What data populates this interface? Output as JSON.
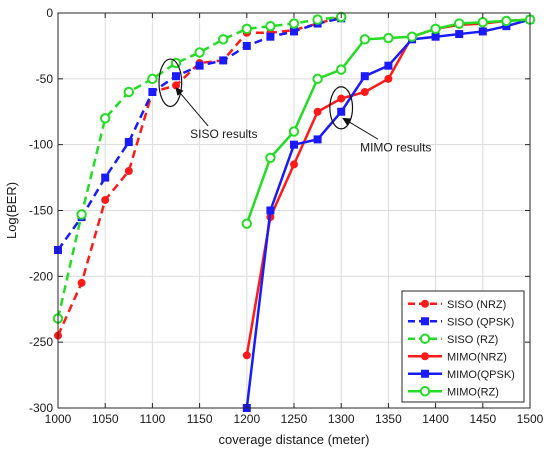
{
  "chart_data": {
    "type": "line",
    "title": "",
    "xlabel": "coverage distance (meter)",
    "ylabel": "Log(BER)",
    "xlim": [
      1000,
      1500
    ],
    "ylim": [
      -300,
      0
    ],
    "xticks": [
      1000,
      1050,
      1100,
      1150,
      1200,
      1250,
      1300,
      1350,
      1400,
      1450,
      1500
    ],
    "yticks": [
      0,
      -50,
      -100,
      -150,
      -200,
      -250,
      -300
    ],
    "grid": true,
    "legend_position": "bottom-right",
    "annotations": [
      {
        "text": "SISO results",
        "ellipse_center": [
          1119,
          -53
        ],
        "ellipse_radii": [
          12,
          18
        ],
        "arrow_to": [
          1125,
          -57
        ],
        "text_at": [
          1140,
          -95
        ]
      },
      {
        "text": "MIMO results",
        "ellipse_center": [
          1300,
          -72
        ],
        "ellipse_radii": [
          12,
          16
        ],
        "arrow_to": [
          1302,
          -80
        ],
        "text_at": [
          1320,
          -105
        ]
      }
    ],
    "series": [
      {
        "name": "SISO (NRZ)",
        "color": "#ff1a1a",
        "dash": true,
        "marker": "circle-filled",
        "x": [
          1000,
          1025,
          1050,
          1075,
          1100,
          1125,
          1150,
          1175,
          1200,
          1225,
          1250,
          1275,
          1300
        ],
        "y": [
          -245,
          -205,
          -142,
          -120,
          -60,
          -55,
          -38,
          -36,
          -15,
          -15,
          -13,
          -8,
          -3
        ]
      },
      {
        "name": "SISO (QPSK)",
        "color": "#1a1aff",
        "dash": true,
        "marker": "square-filled",
        "x": [
          1000,
          1025,
          1050,
          1075,
          1100,
          1125,
          1150,
          1175,
          1200,
          1225,
          1250,
          1275,
          1300
        ],
        "y": [
          -180,
          -155,
          -125,
          -98,
          -60,
          -48,
          -40,
          -36,
          -25,
          -18,
          -14,
          -8,
          -4
        ]
      },
      {
        "name": "SISO (RZ)",
        "color": "#22dd22",
        "dash": true,
        "marker": "circle-open",
        "x": [
          1000,
          1025,
          1050,
          1075,
          1100,
          1125,
          1150,
          1175,
          1200,
          1225,
          1250,
          1275,
          1300
        ],
        "y": [
          -232,
          -153,
          -80,
          -60,
          -50,
          -38,
          -30,
          -20,
          -12,
          -10,
          -8,
          -5,
          -3
        ]
      },
      {
        "name": "MIMO(NRZ)",
        "color": "#ff1a1a",
        "dash": false,
        "marker": "circle-filled",
        "x": [
          1200,
          1225,
          1250,
          1275,
          1300,
          1325,
          1350,
          1375,
          1400,
          1425,
          1450,
          1475,
          1500
        ],
        "y": [
          -260,
          -155,
          -115,
          -75,
          -65,
          -60,
          -50,
          -18,
          -12,
          -9,
          -8,
          -6,
          -5
        ]
      },
      {
        "name": "MIMO(QPSK)",
        "color": "#1a1aff",
        "dash": false,
        "marker": "square-filled",
        "x": [
          1200,
          1225,
          1250,
          1275,
          1300,
          1325,
          1350,
          1375,
          1400,
          1425,
          1450,
          1475,
          1500
        ],
        "y": [
          -300,
          -150,
          -100,
          -96,
          -75,
          -48,
          -40,
          -20,
          -18,
          -16,
          -14,
          -10,
          -5
        ]
      },
      {
        "name": "MIMO(RZ)",
        "color": "#22dd22",
        "dash": false,
        "marker": "circle-open",
        "x": [
          1200,
          1225,
          1250,
          1275,
          1300,
          1325,
          1350,
          1375,
          1400,
          1425,
          1450,
          1475,
          1500
        ],
        "y": [
          -160,
          -110,
          -90,
          -50,
          -43,
          -20,
          -19,
          -18,
          -12,
          -8,
          -7,
          -6,
          -5
        ]
      }
    ]
  }
}
